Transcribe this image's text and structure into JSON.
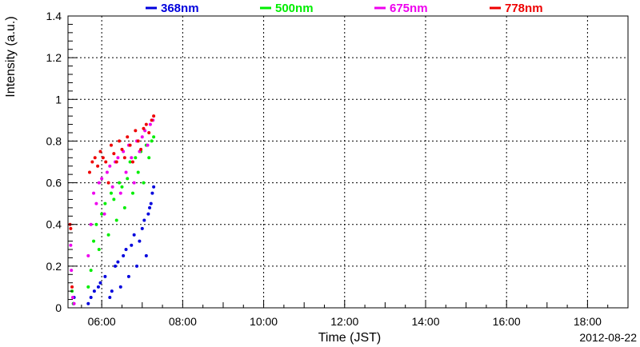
{
  "chart_data": {
    "type": "scatter",
    "title": "",
    "xlabel": "Time (JST)",
    "ylabel": "Intensity (a.u.)",
    "date_label": "2012-08-22",
    "xlim": [
      "05:10",
      "19:00"
    ],
    "ylim": [
      0,
      1.4
    ],
    "grid": true,
    "legend_position": "top",
    "x_ticks": [
      "06:00",
      "08:00",
      "10:00",
      "12:00",
      "14:00",
      "16:00",
      "18:00"
    ],
    "y_ticks": [
      "0",
      "0.2",
      "0.4",
      "0.6",
      "0.8",
      "1",
      "1.2",
      "1.4"
    ],
    "series": [
      {
        "name": "368nm",
        "color": "#0000dd",
        "x": [
          "05:18",
          "05:19",
          "05:40",
          "05:44",
          "05:49",
          "05:55",
          "05:58",
          "06:05",
          "06:12",
          "06:15",
          "06:20",
          "06:24",
          "06:28",
          "06:32",
          "06:36",
          "06:40",
          "06:44",
          "06:48",
          "06:52",
          "06:56",
          "07:00",
          "07:03",
          "07:06",
          "07:09",
          "07:11",
          "07:13",
          "07:15",
          "07:17"
        ],
        "y": [
          0.02,
          0.05,
          0.02,
          0.05,
          0.08,
          0.1,
          0.12,
          0.15,
          0.05,
          0.08,
          0.2,
          0.22,
          0.1,
          0.25,
          0.28,
          0.15,
          0.3,
          0.35,
          0.2,
          0.32,
          0.38,
          0.42,
          0.25,
          0.45,
          0.48,
          0.5,
          0.55,
          0.58
        ]
      },
      {
        "name": "500nm",
        "color": "#00ee00",
        "x": [
          "05:16",
          "05:18",
          "05:40",
          "05:44",
          "05:48",
          "05:52",
          "05:56",
          "06:00",
          "06:05",
          "06:10",
          "06:14",
          "06:18",
          "06:22",
          "06:26",
          "06:30",
          "06:34",
          "06:38",
          "06:42",
          "06:46",
          "06:50",
          "06:54",
          "06:58",
          "07:02",
          "07:06",
          "07:10",
          "07:14",
          "07:17"
        ],
        "y": [
          0.08,
          0.02,
          0.1,
          0.18,
          0.32,
          0.4,
          0.28,
          0.45,
          0.5,
          0.35,
          0.55,
          0.52,
          0.42,
          0.6,
          0.58,
          0.48,
          0.62,
          0.7,
          0.55,
          0.72,
          0.65,
          0.75,
          0.6,
          0.78,
          0.72,
          0.8,
          0.82
        ]
      },
      {
        "name": "675nm",
        "color": "#ee00ee",
        "x": [
          "05:14",
          "05:15",
          "05:17",
          "05:19",
          "05:40",
          "05:44",
          "05:48",
          "05:52",
          "05:56",
          "06:00",
          "06:04",
          "06:08",
          "06:12",
          "06:16",
          "06:20",
          "06:24",
          "06:28",
          "06:32",
          "06:36",
          "06:40",
          "06:44",
          "06:48",
          "06:52",
          "06:56",
          "07:00",
          "07:04",
          "07:08",
          "07:12",
          "07:16"
        ],
        "y": [
          0.3,
          0.18,
          0.05,
          0.02,
          0.25,
          0.4,
          0.55,
          0.5,
          0.6,
          0.62,
          0.45,
          0.65,
          0.68,
          0.58,
          0.7,
          0.72,
          0.55,
          0.75,
          0.65,
          0.78,
          0.72,
          0.6,
          0.8,
          0.75,
          0.82,
          0.85,
          0.78,
          0.88,
          0.9
        ]
      },
      {
        "name": "778nm",
        "color": "#ee0000",
        "x": [
          "05:13",
          "05:14",
          "05:16",
          "05:42",
          "05:46",
          "05:50",
          "05:54",
          "05:58",
          "06:02",
          "06:06",
          "06:10",
          "06:14",
          "06:18",
          "06:22",
          "06:26",
          "06:30",
          "06:34",
          "06:38",
          "06:42",
          "06:46",
          "06:50",
          "06:54",
          "06:58",
          "07:02",
          "07:06",
          "07:10",
          "07:14",
          "07:17"
        ],
        "y": [
          0.4,
          0.38,
          0.1,
          0.65,
          0.7,
          0.72,
          0.68,
          0.75,
          0.72,
          0.7,
          0.6,
          0.78,
          0.74,
          0.7,
          0.8,
          0.76,
          0.72,
          0.82,
          0.78,
          0.7,
          0.85,
          0.8,
          0.76,
          0.86,
          0.88,
          0.84,
          0.9,
          0.92
        ]
      }
    ]
  }
}
